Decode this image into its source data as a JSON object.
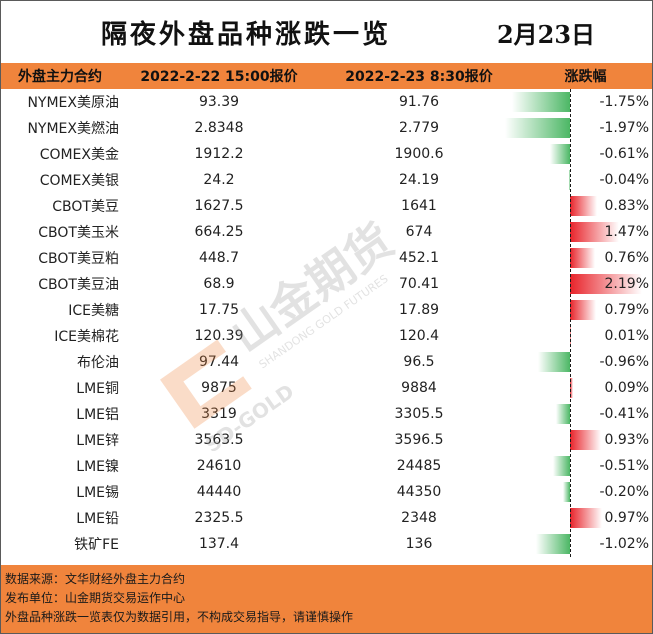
{
  "title": "隔夜外盘品种涨跌一览",
  "date": "2月23日",
  "header": {
    "col_name": "外盘主力合约",
    "col_prev": "2022-2-22 15:00报价",
    "col_curr": "2022-2-23 8:30报价",
    "col_change": "涨跌幅"
  },
  "colors": {
    "header_bg": "#f0843c",
    "rise": "#e8232a",
    "fall": "#4cb765"
  },
  "rows": [
    {
      "name": "NYMEX美原油",
      "prev": "93.39",
      "curr": "91.76",
      "change": "-1.75%",
      "pct": -1.75
    },
    {
      "name": "NYMEX美燃油",
      "prev": "2.8348",
      "curr": "2.779",
      "change": "-1.97%",
      "pct": -1.97
    },
    {
      "name": "COMEX美金",
      "prev": "1912.2",
      "curr": "1900.6",
      "change": "-0.61%",
      "pct": -0.61
    },
    {
      "name": "COMEX美银",
      "prev": "24.2",
      "curr": "24.19",
      "change": "-0.04%",
      "pct": -0.04
    },
    {
      "name": "CBOT美豆",
      "prev": "1627.5",
      "curr": "1641",
      "change": "0.83%",
      "pct": 0.83
    },
    {
      "name": "CBOT美玉米",
      "prev": "664.25",
      "curr": "674",
      "change": "1.47%",
      "pct": 1.47
    },
    {
      "name": "CBOT美豆粕",
      "prev": "448.7",
      "curr": "452.1",
      "change": "0.76%",
      "pct": 0.76
    },
    {
      "name": "CBOT美豆油",
      "prev": "68.9",
      "curr": "70.41",
      "change": "2.19%",
      "pct": 2.19
    },
    {
      "name": "ICE美糖",
      "prev": "17.75",
      "curr": "17.89",
      "change": "0.79%",
      "pct": 0.79
    },
    {
      "name": "ICE美棉花",
      "prev": "120.39",
      "curr": "120.4",
      "change": "0.01%",
      "pct": 0.01
    },
    {
      "name": "布伦油",
      "prev": "97.44",
      "curr": "96.5",
      "change": "-0.96%",
      "pct": -0.96
    },
    {
      "name": "LME铜",
      "prev": "9875",
      "curr": "9884",
      "change": "0.09%",
      "pct": 0.09
    },
    {
      "name": "LME铝",
      "prev": "3319",
      "curr": "3305.5",
      "change": "-0.41%",
      "pct": -0.41
    },
    {
      "name": "LME锌",
      "prev": "3563.5",
      "curr": "3596.5",
      "change": "0.93%",
      "pct": 0.93
    },
    {
      "name": "LME镍",
      "prev": "24610",
      "curr": "24485",
      "change": "-0.51%",
      "pct": -0.51
    },
    {
      "name": "LME锡",
      "prev": "44440",
      "curr": "44350",
      "change": "-0.20%",
      "pct": -0.2
    },
    {
      "name": "LME铅",
      "prev": "2325.5",
      "curr": "2348",
      "change": "0.97%",
      "pct": 0.97
    },
    {
      "name": "铁矿FE",
      "prev": "137.4",
      "curr": "136",
      "change": "-1.02%",
      "pct": -1.02
    }
  ],
  "watermark": {
    "brand": "山金期货",
    "brand_en": "SHANDONG GOLD FUTURES",
    "logo_text": "SD-GOLD"
  },
  "footer": {
    "source": "数据来源：文华财经外盘主力合约",
    "publisher": "发布单位：山金期货交易运作中心",
    "disclaimer": "外盘品种涨跌一览表仅为数据引用，不构成交易指导，请谨慎操作"
  }
}
